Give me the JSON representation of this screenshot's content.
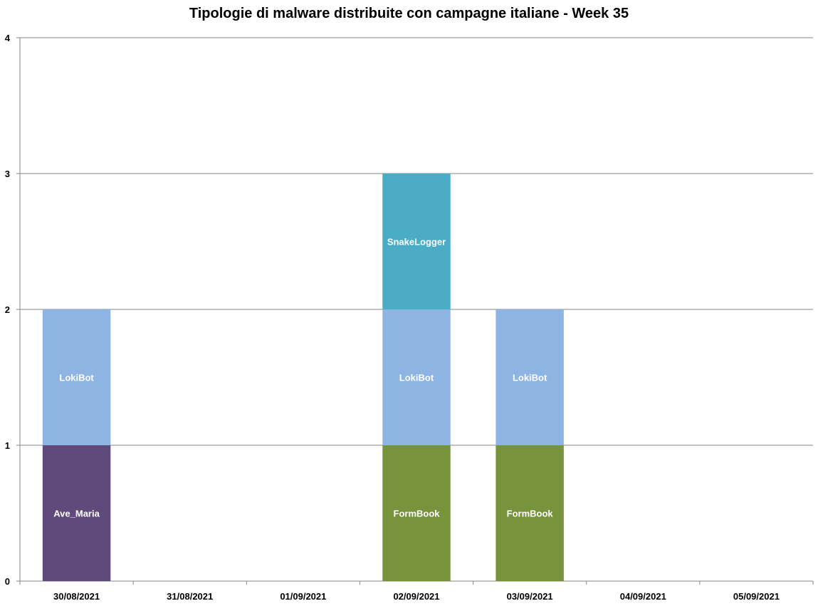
{
  "chart_data": {
    "type": "bar",
    "stacked": true,
    "title": "Tipologie di malware distribuite con campagne italiane - Week 35",
    "categories": [
      "30/08/2021",
      "31/08/2021",
      "01/09/2021",
      "02/09/2021",
      "03/09/2021",
      "04/09/2021",
      "05/09/2021"
    ],
    "ylim": [
      0,
      4
    ],
    "yticks": [
      0,
      1,
      2,
      3,
      4
    ],
    "grid": true,
    "legend": "none",
    "series": [
      {
        "name": "Ave_Maria",
        "color": "#604a7b",
        "values": [
          1,
          0,
          0,
          0,
          0,
          0,
          0
        ]
      },
      {
        "name": "FormBook",
        "color": "#77933c",
        "values": [
          0,
          0,
          0,
          1,
          1,
          0,
          0
        ]
      },
      {
        "name": "LokiBot",
        "color": "#8eb4e3",
        "values": [
          1,
          0,
          0,
          1,
          1,
          0,
          0
        ]
      },
      {
        "name": "SnakeLogger",
        "color": "#4bacc6",
        "values": [
          0,
          0,
          0,
          1,
          0,
          0,
          0
        ]
      }
    ]
  }
}
